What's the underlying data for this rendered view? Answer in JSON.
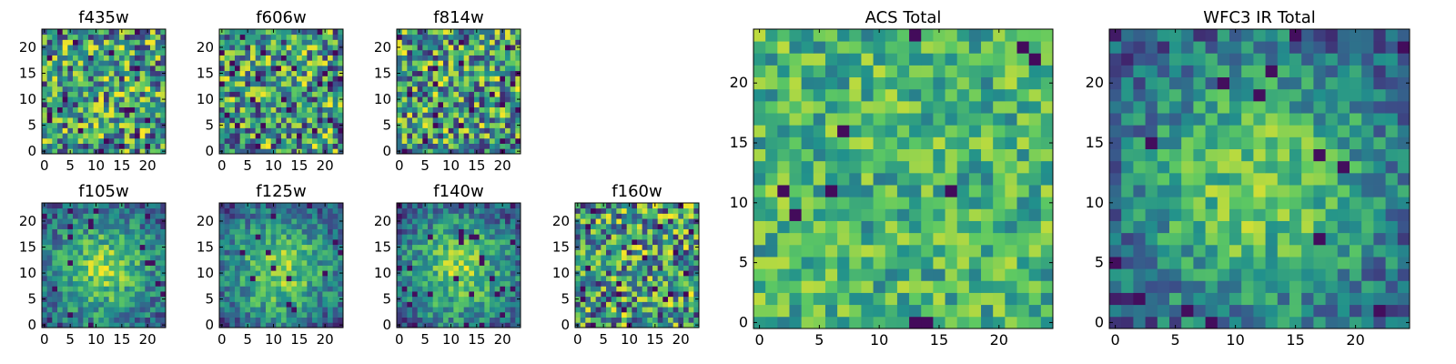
{
  "figure": {
    "title": "",
    "colormap": "viridis",
    "colormap_stops": [
      "#440154",
      "#3b528b",
      "#21918c",
      "#5ec962",
      "#fde725"
    ]
  },
  "chart_data": [
    {
      "type": "heatmap",
      "title": "f435w",
      "grid": 24,
      "xlim": [
        0,
        24
      ],
      "ylim": [
        0,
        24
      ],
      "xticks": [
        0,
        5,
        10,
        15,
        20
      ],
      "yticks": [
        0,
        5,
        10,
        15,
        20
      ],
      "texture": "noise",
      "seed": 11,
      "x": [],
      "y": [],
      "values": []
    },
    {
      "type": "heatmap",
      "title": "f606w",
      "grid": 24,
      "xlim": [
        0,
        24
      ],
      "ylim": [
        0,
        24
      ],
      "xticks": [
        0,
        5,
        10,
        15,
        20
      ],
      "yticks": [
        0,
        5,
        10,
        15,
        20
      ],
      "texture": "noise",
      "seed": 23,
      "x": [],
      "y": [],
      "values": []
    },
    {
      "type": "heatmap",
      "title": "f814w",
      "grid": 24,
      "xlim": [
        0,
        24
      ],
      "ylim": [
        0,
        24
      ],
      "xticks": [
        0,
        5,
        10,
        15,
        20
      ],
      "yticks": [
        0,
        5,
        10,
        15,
        20
      ],
      "texture": "noise",
      "seed": 37,
      "x": [],
      "y": [],
      "values": []
    },
    {
      "type": "heatmap",
      "title": "f105w",
      "grid": 24,
      "xlim": [
        0,
        24
      ],
      "ylim": [
        0,
        24
      ],
      "xticks": [
        0,
        5,
        10,
        15,
        20
      ],
      "yticks": [
        0,
        5,
        10,
        15,
        20
      ],
      "texture": "blob",
      "seed": 41,
      "x": [],
      "y": [],
      "values": []
    },
    {
      "type": "heatmap",
      "title": "f125w",
      "grid": 24,
      "xlim": [
        0,
        24
      ],
      "ylim": [
        0,
        24
      ],
      "xticks": [
        0,
        5,
        10,
        15,
        20
      ],
      "yticks": [
        0,
        5,
        10,
        15,
        20
      ],
      "texture": "blob",
      "seed": 53,
      "x": [],
      "y": [],
      "values": []
    },
    {
      "type": "heatmap",
      "title": "f140w",
      "grid": 24,
      "xlim": [
        0,
        24
      ],
      "ylim": [
        0,
        24
      ],
      "xticks": [
        0,
        5,
        10,
        15,
        20
      ],
      "yticks": [
        0,
        5,
        10,
        15,
        20
      ],
      "texture": "blob",
      "seed": 67,
      "x": [],
      "y": [],
      "values": []
    },
    {
      "type": "heatmap",
      "title": "f160w",
      "grid": 24,
      "xlim": [
        0,
        24
      ],
      "ylim": [
        0,
        24
      ],
      "xticks": [
        0,
        5,
        10,
        15,
        20
      ],
      "yticks": [
        0,
        5,
        10,
        15,
        20
      ],
      "texture": "noise",
      "seed": 79,
      "x": [],
      "y": [],
      "values": []
    },
    {
      "type": "heatmap",
      "title": "ACS Total",
      "grid": 25,
      "xlim": [
        0,
        25
      ],
      "ylim": [
        0,
        25
      ],
      "xticks": [
        0,
        5,
        10,
        15,
        20
      ],
      "yticks": [
        0,
        5,
        10,
        15,
        20
      ],
      "texture": "mild",
      "seed": 97,
      "x": [],
      "y": [],
      "values": []
    },
    {
      "type": "heatmap",
      "title": "WFC3 IR Total",
      "grid": 25,
      "xlim": [
        0,
        25
      ],
      "ylim": [
        0,
        25
      ],
      "xticks": [
        0,
        5,
        10,
        15,
        20
      ],
      "yticks": [
        0,
        5,
        10,
        15,
        20
      ],
      "texture": "blob",
      "seed": 113,
      "x": [],
      "y": [],
      "values": []
    }
  ]
}
